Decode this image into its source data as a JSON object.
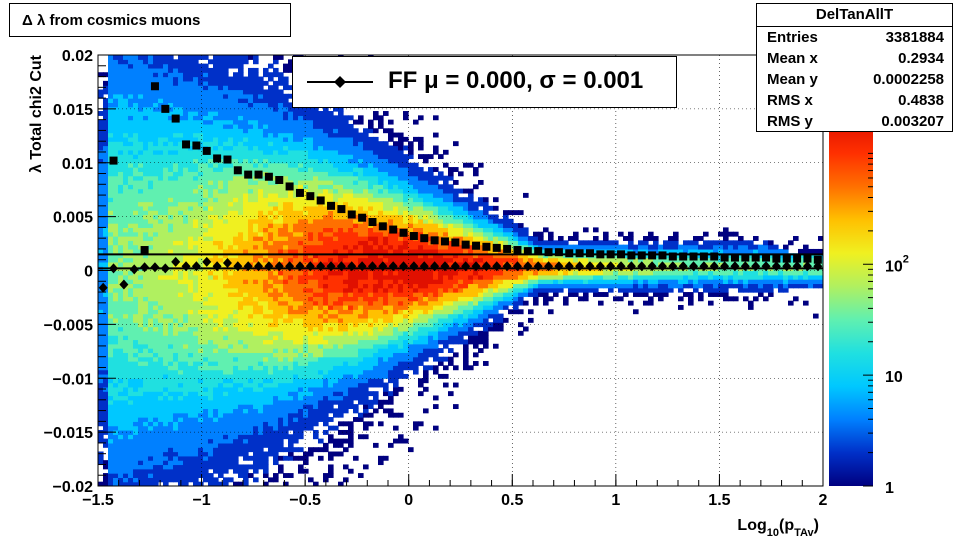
{
  "chart_data": {
    "type": "heatmap",
    "title": "Δ λ from cosmics muons",
    "xlabel": "Log",
    "xlabel_sub1": "10",
    "xlabel_mid": "(p",
    "xlabel_sub2": "TAv",
    "xlabel_end": ")",
    "ylabel": "λ  Total chi2 Cut",
    "xlim": [
      -1.5,
      2
    ],
    "ylim": [
      -0.02,
      0.02
    ],
    "x_ticks": [
      -1.5,
      -1,
      -0.5,
      0,
      0.5,
      1,
      1.5,
      2
    ],
    "x_tick_labels": [
      "−1.5",
      "−1",
      "−0.5",
      "0",
      "0.5",
      "1",
      "1.5",
      "2"
    ],
    "y_ticks": [
      -0.02,
      -0.015,
      -0.01,
      -0.005,
      0,
      0.005,
      0.01,
      0.015,
      0.02
    ],
    "y_tick_labels": [
      "−0.02",
      "−0.015",
      "−0.01",
      "−0.005",
      "0",
      "0.005",
      "0.01",
      "0.015",
      "0.02"
    ],
    "z_scale": "log",
    "zlim": [
      1,
      2000
    ],
    "z_tick_labels": [
      {
        "value": 1,
        "label": "1",
        "sup": ""
      },
      {
        "value": 10,
        "label": "10",
        "sup": ""
      },
      {
        "value": 100,
        "label": "10",
        "sup": "2"
      }
    ],
    "grid": true,
    "colors": [
      "#000080",
      "#0030c8",
      "#0080ff",
      "#00c8ff",
      "#20e0e0",
      "#60f0b0",
      "#b0f060",
      "#f0f020",
      "#ffc000",
      "#ff7000",
      "#ff3000",
      "#e01000"
    ],
    "stats": {
      "name": "DelTanAllT",
      "rows": [
        {
          "label": "Entries",
          "value": "3381884"
        },
        {
          "label": "Mean x",
          "value": "0.2934"
        },
        {
          "label": "Mean y",
          "value": "0.0002258"
        },
        {
          "label": "RMS x",
          "value": "0.4838"
        },
        {
          "label": "RMS y",
          "value": "0.003207"
        }
      ]
    },
    "legend": {
      "text": "FF μ =  0.000, σ =   0.001",
      "marker": "diamond",
      "color": "#000000"
    },
    "series": [
      {
        "name": "FF",
        "marker": "diamond",
        "x": [
          -1.475,
          -1.425,
          -1.375,
          -1.325,
          -1.275,
          -1.225,
          -1.175,
          -1.125,
          -1.075,
          -1.025,
          -0.975,
          -0.925,
          -0.875,
          -0.825,
          -0.775,
          -0.725,
          -0.675,
          -0.625,
          -0.575,
          -0.525,
          -0.475,
          -0.425,
          -0.375,
          -0.325,
          -0.275,
          -0.225,
          -0.175,
          -0.125,
          -0.075,
          -0.025,
          0.025,
          0.075,
          0.125,
          0.175,
          0.225,
          0.275,
          0.325,
          0.375,
          0.425,
          0.475,
          0.525,
          0.575,
          0.625,
          0.675,
          0.725,
          0.775,
          0.825,
          0.875,
          0.925,
          0.975,
          1.025,
          1.075,
          1.125,
          1.175,
          1.225,
          1.275,
          1.325,
          1.375,
          1.425,
          1.475,
          1.525,
          1.575,
          1.625,
          1.675,
          1.725,
          1.775,
          1.825,
          1.875,
          1.925,
          1.975
        ],
        "y": [
          -0.0016,
          0.0002,
          -0.0013,
          0.0001,
          0.0003,
          0.0003,
          0.0002,
          0.0008,
          0.0004,
          0.0004,
          0.0008,
          0.0004,
          0.0007,
          0.0004,
          0.0004,
          0.0004,
          0.0004,
          0.0004,
          0.0004,
          0.0004,
          0.0004,
          0.0004,
          0.0004,
          0.0004,
          0.0004,
          0.0004,
          0.0004,
          0.0004,
          0.0004,
          0.0004,
          0.0004,
          0.0004,
          0.0004,
          0.0004,
          0.0004,
          0.0004,
          0.0004,
          0.0004,
          0.0004,
          0.0004,
          0.0004,
          0.0004,
          0.0004,
          0.0004,
          0.0004,
          0.0004,
          0.0004,
          0.0004,
          0.0004,
          0.0004,
          0.0004,
          0.0004,
          0.0004,
          0.0004,
          0.0004,
          0.0004,
          0.0004,
          0.0004,
          0.0004,
          0.0004,
          0.0004,
          0.0004,
          0.0004,
          0.0004,
          0.0004,
          0.0004,
          0.0004,
          0.0004,
          0.0004,
          0.0004
        ]
      },
      {
        "name": "",
        "marker": "square",
        "x": [
          -1.425,
          -1.275,
          -1.225,
          -1.175,
          -1.125,
          -1.075,
          -1.025,
          -0.975,
          -0.925,
          -0.875,
          -0.825,
          -0.775,
          -0.725,
          -0.675,
          -0.625,
          -0.575,
          -0.525,
          -0.475,
          -0.425,
          -0.375,
          -0.325,
          -0.275,
          -0.225,
          -0.175,
          -0.125,
          -0.075,
          -0.025,
          0.025,
          0.075,
          0.125,
          0.175,
          0.225,
          0.275,
          0.325,
          0.375,
          0.425,
          0.475,
          0.525,
          0.575,
          0.625,
          0.675,
          0.725,
          0.775,
          0.825,
          0.875,
          0.925,
          0.975,
          1.025,
          1.075,
          1.125,
          1.175,
          1.225,
          1.275,
          1.325,
          1.375,
          1.425,
          1.475,
          1.525,
          1.575,
          1.625,
          1.675,
          1.725,
          1.775,
          1.825,
          1.875,
          1.925,
          1.975
        ],
        "y": [
          0.0102,
          0.0019,
          0.0171,
          0.015,
          0.0141,
          0.0117,
          0.0116,
          0.0111,
          0.0104,
          0.0103,
          0.0093,
          0.0089,
          0.0089,
          0.0087,
          0.0084,
          0.0078,
          0.0072,
          0.0069,
          0.0065,
          0.006,
          0.0057,
          0.0052,
          0.0049,
          0.0045,
          0.0041,
          0.0038,
          0.0035,
          0.0032,
          0.003,
          0.0028,
          0.0027,
          0.0026,
          0.0024,
          0.0023,
          0.0022,
          0.0021,
          0.002,
          0.0019,
          0.0018,
          0.0018,
          0.0017,
          0.0017,
          0.0016,
          0.0016,
          0.0016,
          0.0015,
          0.0015,
          0.0015,
          0.0014,
          0.0014,
          0.0014,
          0.0014,
          0.0013,
          0.0013,
          0.0013,
          0.0013,
          0.0013,
          0.0012,
          0.0012,
          0.0012,
          0.0012,
          0.0012,
          0.0011,
          0.0011,
          0.0011,
          0.0011,
          0.001
        ]
      }
    ],
    "fit_lines": [
      {
        "name": "",
        "y": 0.0015
      },
      {
        "name": "",
        "y": 0.0002
      }
    ]
  }
}
